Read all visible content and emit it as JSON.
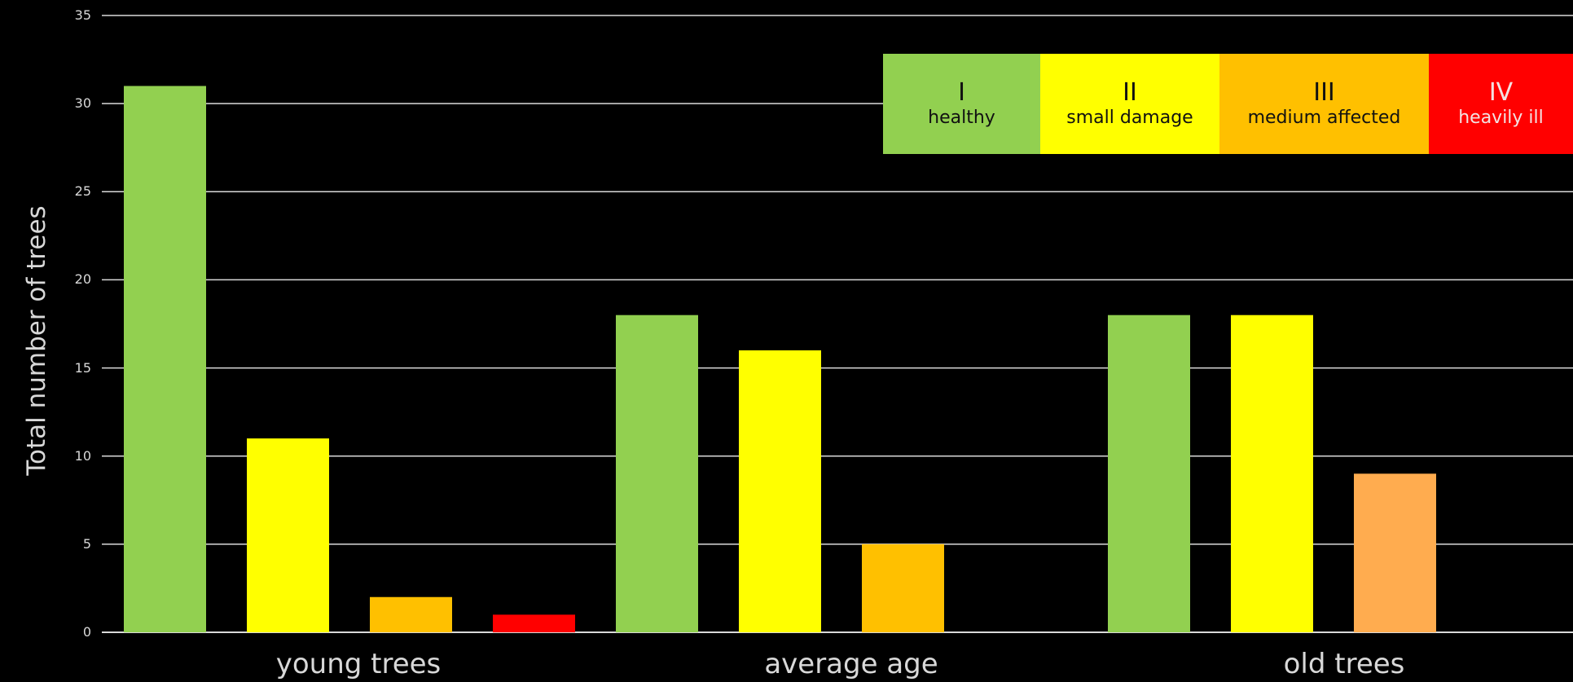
{
  "chart_data": {
    "type": "bar",
    "ylabel": "Total number of trees",
    "xlabel": "",
    "ylim": [
      0,
      35
    ],
    "yticks": [
      0,
      5,
      10,
      15,
      20,
      25,
      30,
      35
    ],
    "grid": true,
    "legend_position": "top-right",
    "categories": [
      "young trees",
      "average age",
      "old trees"
    ],
    "series": [
      {
        "name": "I healthy",
        "color": "#92d050",
        "values": [
          31,
          18,
          18
        ]
      },
      {
        "name": "II small damage",
        "color": "#ffff00",
        "values": [
          11,
          16,
          18
        ]
      },
      {
        "name": "III medium affected",
        "color_by_category": [
          "#ffc000",
          "#ffc000",
          "#ffac4f"
        ],
        "values": [
          2,
          5,
          9
        ]
      },
      {
        "name": "IV heavily ill",
        "color": "#ff0000",
        "values": [
          1,
          0,
          0
        ]
      }
    ]
  },
  "legend": {
    "items": [
      {
        "numeral": "I",
        "label": "healthy",
        "color": "#92d050"
      },
      {
        "numeral": "II",
        "label": "small damage",
        "color": "#ffff00"
      },
      {
        "numeral": "III",
        "label": "medium affected",
        "color": "#ffc000"
      },
      {
        "numeral": "IV",
        "label": "heavily ill",
        "color": "#ff0000"
      }
    ]
  },
  "colors": {
    "background": "#000000",
    "gridline": "#d9d9d9",
    "axis_text": "#d8d8d8"
  }
}
